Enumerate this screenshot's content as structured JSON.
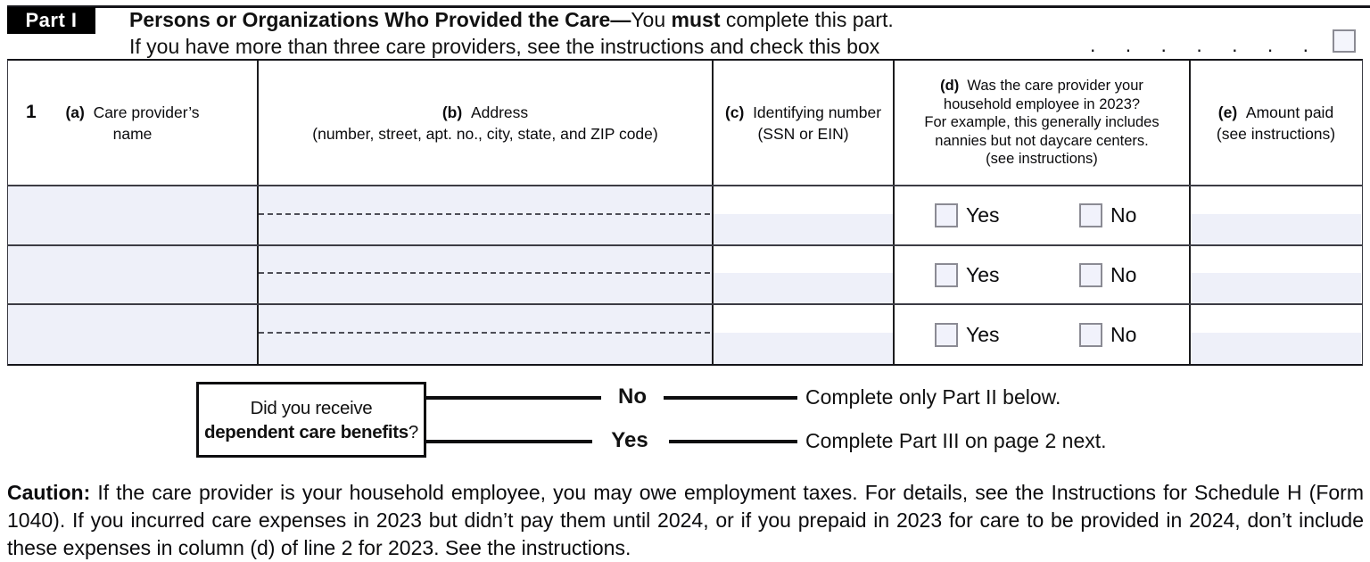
{
  "header": {
    "part_label": "Part I",
    "title_bold": "Persons or Organizations Who Provided the Care—",
    "title_regular_a": "You ",
    "title_bold_b": "must",
    "title_regular_b": " complete this part.",
    "line2_text": "If you have more than three care providers, see the instructions and check this box",
    "dot_leader": ". . . . . . . ."
  },
  "table": {
    "item_number": "1",
    "col_a_tag": "(a)",
    "col_a_line1": "Care provider’s",
    "col_a_line2": "name",
    "col_b_tag": "(b)",
    "col_b_line1": "Address",
    "col_b_line2": "(number, street, apt. no., city, state, and ZIP code)",
    "col_c_tag": "(c)",
    "col_c_line1": "Identifying number",
    "col_c_line2": "(SSN or EIN)",
    "col_d_tag": "(d)",
    "col_d_line1": "Was the care provider your",
    "col_d_line2": "household employee in 2023?",
    "col_d_line3": "For example, this generally includes",
    "col_d_line4": "nannies but not daycare centers.",
    "col_d_line5": "(see instructions)",
    "col_e_tag": "(e)",
    "col_e_line1": "Amount paid",
    "col_e_line2": "(see instructions)",
    "rows": [
      {
        "yes": "Yes",
        "no": "No"
      },
      {
        "yes": "Yes",
        "no": "No"
      },
      {
        "yes": "Yes",
        "no": "No"
      }
    ]
  },
  "flowchart": {
    "question_line1": "Did you receive",
    "question_line2_bold": "dependent care benefits",
    "question_mark": "?",
    "no_label": "No",
    "no_result": "Complete only Part II below.",
    "yes_label": "Yes",
    "yes_result": "Complete Part III on page 2 next."
  },
  "caution": {
    "label": "Caution:",
    "text": " If the care provider is your household employee, you may owe employment taxes. For details, see the Instructions for Schedule H (Form 1040). If you incurred care expenses in 2023 but didn’t pay them until 2024, or if you prepaid in 2023 for care to be provided in 2024, don’t include these expenses in column (d) of line 2 for 2023. See the instructions."
  },
  "colors": {
    "field_fill": "#eef0f9",
    "checkbox_fill": "#f1f2fb",
    "checkbox_border": "#8b8b94",
    "rule_dark": "#15151a"
  }
}
